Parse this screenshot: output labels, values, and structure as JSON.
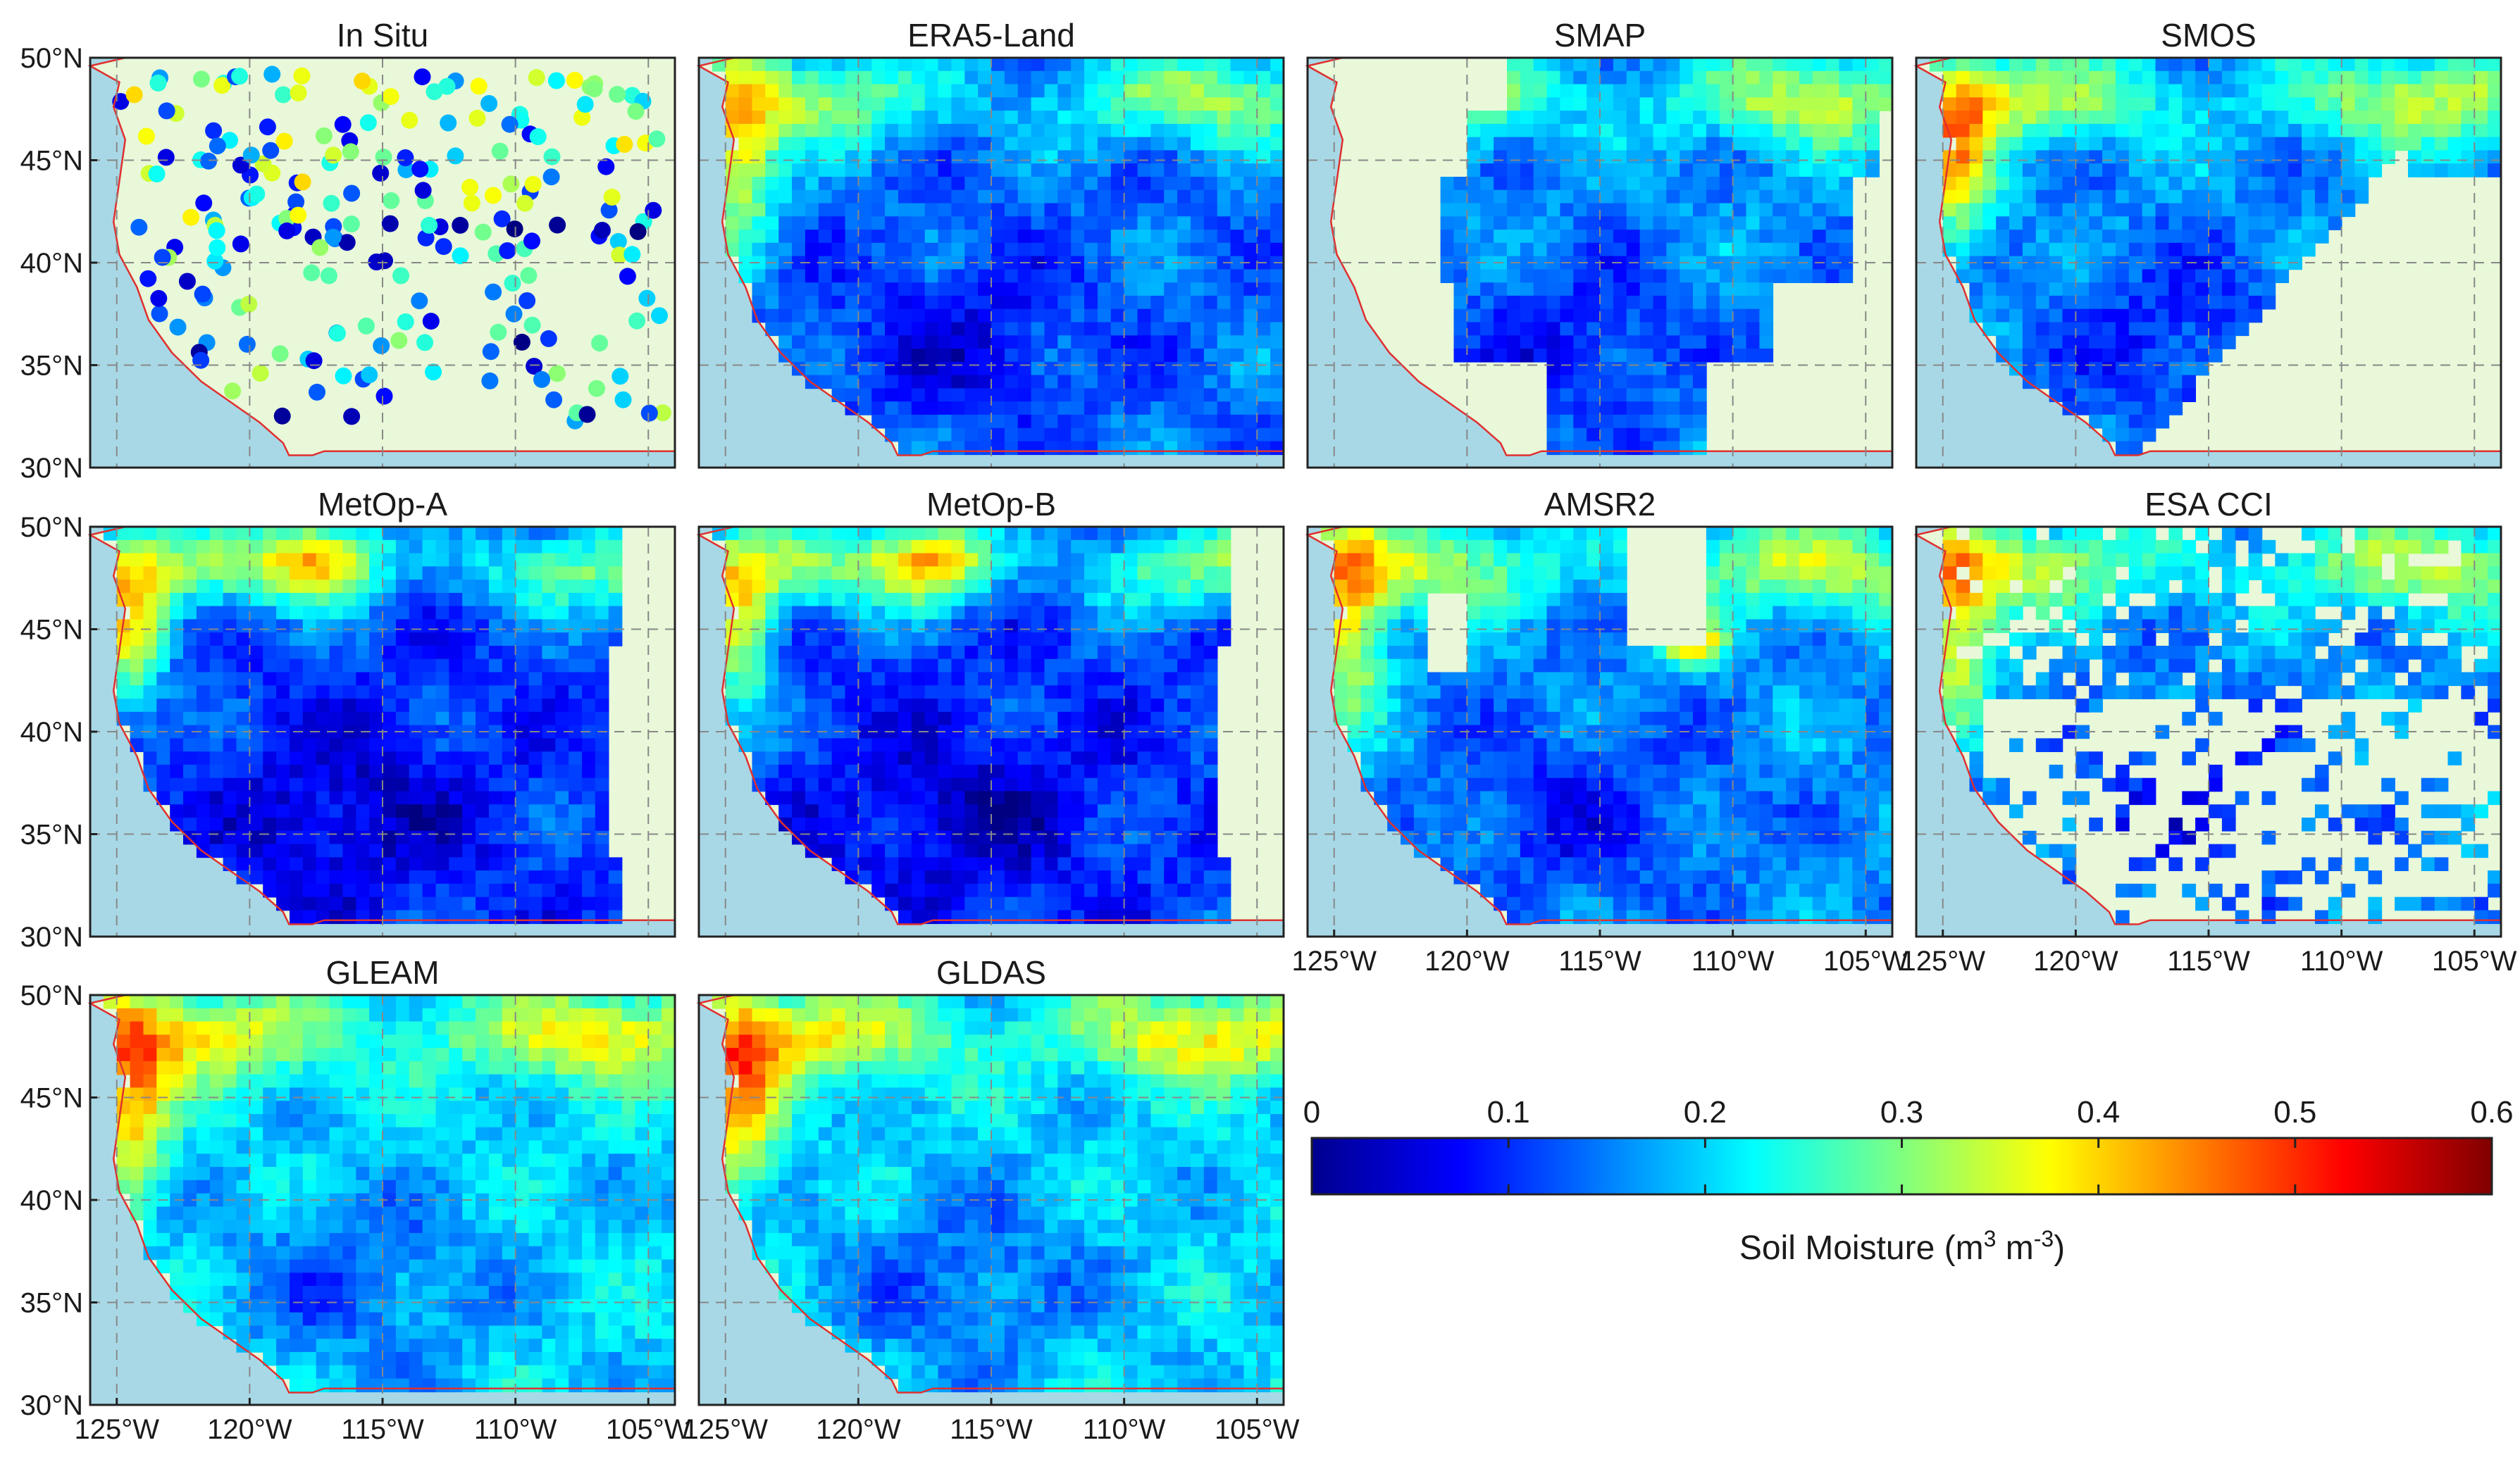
{
  "figure": {
    "colorbar": {
      "title_prefix": "Soil Moisture (m",
      "title_exp1": "3",
      "title_mid": " m",
      "title_exp2": "-3",
      "title_suffix": ")",
      "ticks": [
        "0",
        "0.1",
        "0.2",
        "0.3",
        "0.4",
        "0.5",
        "0.6"
      ],
      "colormap": "jet",
      "range": [
        0,
        0.6
      ]
    },
    "lat_ticks": [
      "50°N",
      "45°N",
      "40°N",
      "35°N",
      "30°N"
    ],
    "lon_ticks": [
      "125°W",
      "120°W",
      "115°W",
      "110°W",
      "105°W"
    ],
    "lat_range": [
      30,
      50
    ],
    "lon_range": [
      -126,
      -104
    ],
    "colors": {
      "ocean": "#a8d8e6",
      "land_nodata": "#e8f8d8",
      "coastline": "#e03030",
      "grid": "#888888"
    },
    "panels": [
      {
        "title": "In Situ",
        "type": "points"
      },
      {
        "title": "ERA5-Land",
        "type": "field",
        "coverage": "full"
      },
      {
        "title": "SMAP",
        "type": "field",
        "coverage": "swath-smap"
      },
      {
        "title": "SMOS",
        "type": "field",
        "coverage": "swath-smos"
      },
      {
        "title": "MetOp-A",
        "type": "field",
        "coverage": "ascat"
      },
      {
        "title": "MetOp-B",
        "type": "field",
        "coverage": "ascat"
      },
      {
        "title": "AMSR2",
        "type": "field",
        "coverage": "amsr2"
      },
      {
        "title": "ESA CCI",
        "type": "field",
        "coverage": "cci"
      },
      {
        "title": "GLEAM",
        "type": "field",
        "coverage": "full"
      },
      {
        "title": "GLDAS",
        "type": "field",
        "coverage": "full"
      }
    ]
  }
}
